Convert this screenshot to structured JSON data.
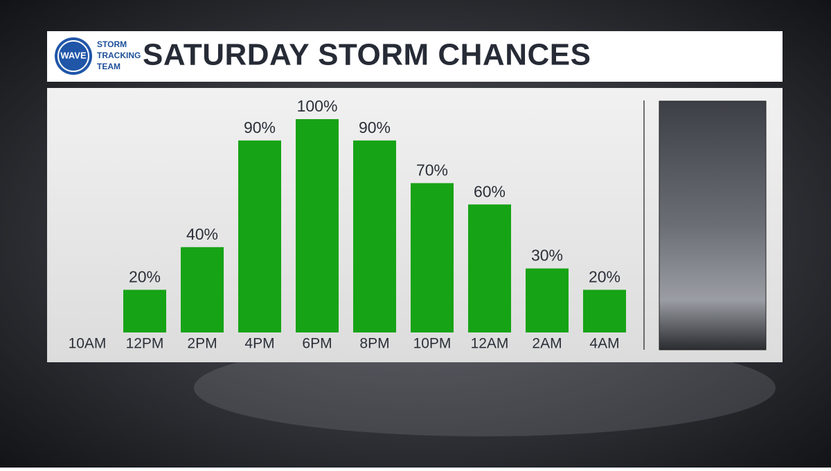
{
  "chart_data": {
    "type": "bar",
    "title": "SATURDAY STORM CHANCES",
    "logo": {
      "badge": "WAVE",
      "lines": [
        "STORM",
        "TRACKING",
        "TEAM"
      ]
    },
    "categories": [
      "10AM",
      "12PM",
      "2PM",
      "4PM",
      "6PM",
      "8PM",
      "10PM",
      "12AM",
      "2AM",
      "4AM"
    ],
    "values": [
      0,
      20,
      40,
      90,
      100,
      90,
      70,
      60,
      30,
      20
    ],
    "value_labels": [
      null,
      "20%",
      "40%",
      "90%",
      "100%",
      "90%",
      "70%",
      "60%",
      "30%",
      "20%"
    ],
    "color": "#17a316",
    "ylim": [
      0,
      100
    ]
  }
}
